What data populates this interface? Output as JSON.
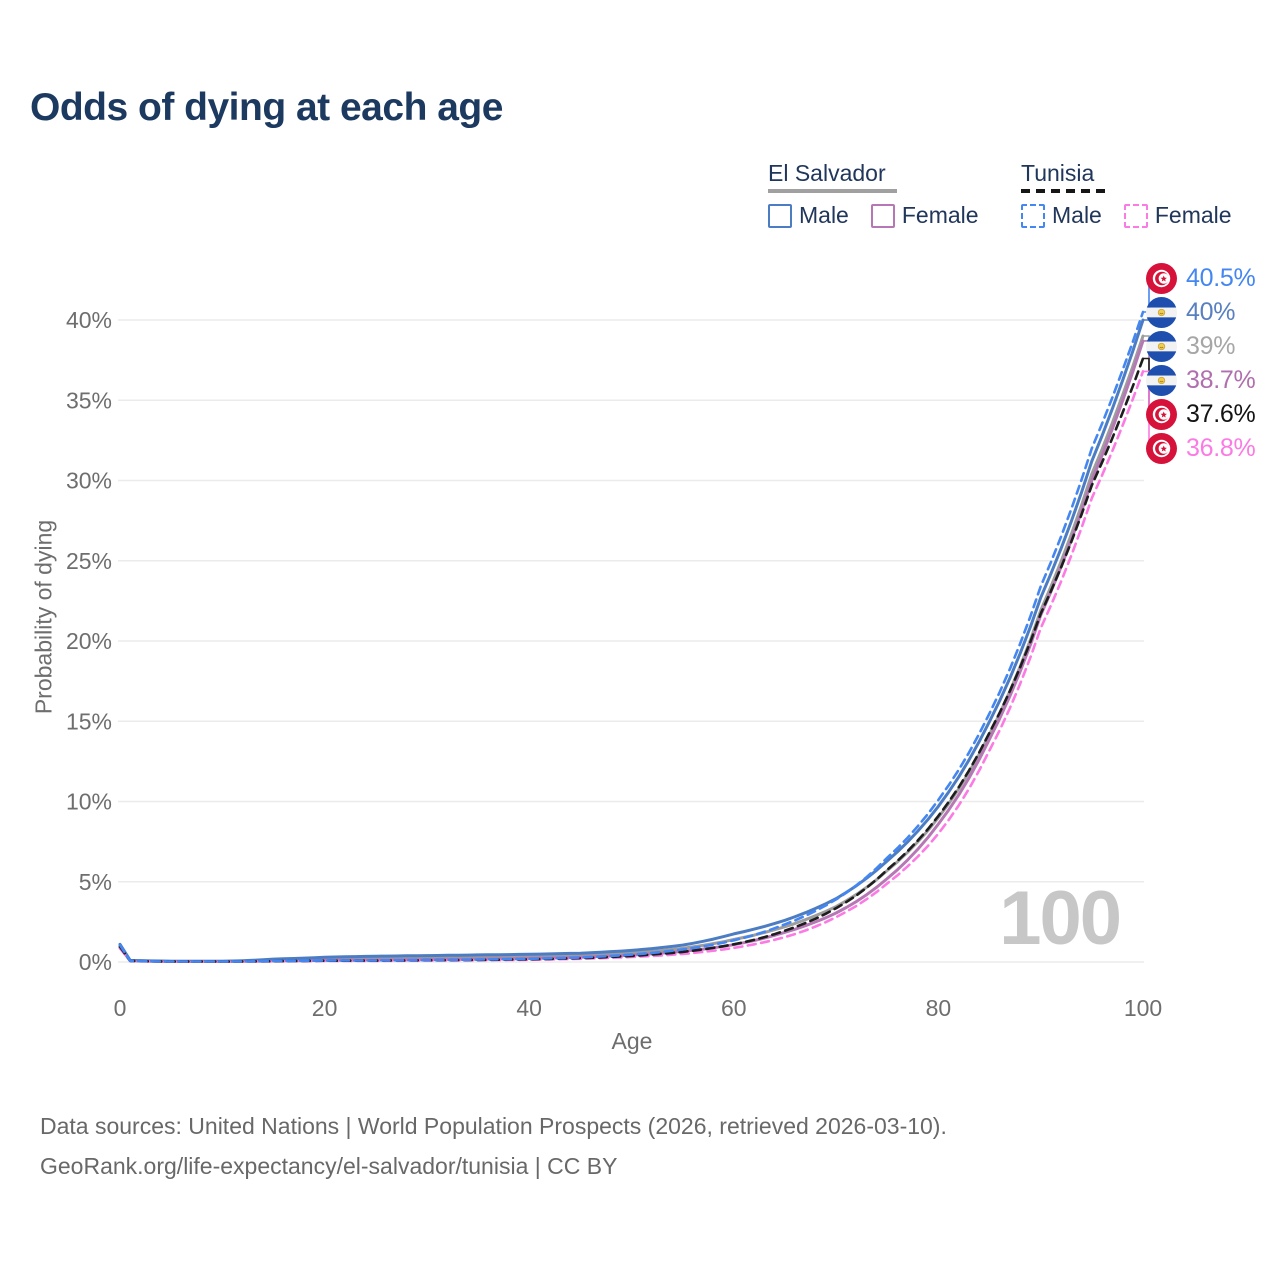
{
  "title": "Odds of dying at each age",
  "legend": {
    "groups": [
      {
        "country": "El Salvador",
        "line_style": "solid",
        "underline_color": "#a0a0a0",
        "items": [
          {
            "label": "Male",
            "color": "#4c7dc2",
            "dashed": false
          },
          {
            "label": "Female",
            "color": "#b678b4",
            "dashed": false
          }
        ]
      },
      {
        "country": "Tunisia",
        "line_style": "dashed",
        "underline_color": "#161616",
        "items": [
          {
            "label": "Male",
            "color": "#4486f2",
            "dashed": true
          },
          {
            "label": "Female",
            "color": "#fb7ae3",
            "dashed": true
          }
        ]
      }
    ]
  },
  "chart_data": {
    "type": "line",
    "title": "Odds of dying at each age",
    "xlabel": "Age",
    "ylabel": "Probability of dying",
    "xlim": [
      0,
      100
    ],
    "ylim_percent": [
      0,
      42
    ],
    "x_ticks": [
      0,
      20,
      40,
      60,
      80,
      100
    ],
    "y_ticks_percent": [
      0,
      5,
      10,
      15,
      20,
      25,
      30,
      35,
      40
    ],
    "y_tick_suffix": "%",
    "grid": true,
    "watermark": "100",
    "ages": [
      0,
      1,
      5,
      10,
      15,
      20,
      25,
      30,
      35,
      40,
      45,
      50,
      55,
      60,
      65,
      70,
      75,
      80,
      85,
      90,
      95,
      100
    ],
    "series": [
      {
        "id": "sv-all",
        "country": "El Salvador",
        "group": "all",
        "color": "#9d9d9d",
        "dash": false,
        "end_value_label": "39%",
        "values_percent": [
          1.0,
          0.09,
          0.04,
          0.04,
          0.12,
          0.2,
          0.24,
          0.27,
          0.3,
          0.34,
          0.42,
          0.56,
          0.85,
          1.4,
          2.2,
          3.45,
          5.7,
          9.0,
          14.2,
          21.9,
          30.4,
          39.0
        ]
      },
      {
        "id": "sv-female",
        "country": "El Salvador",
        "group": "female",
        "legend": "Female",
        "color": "#b678b4",
        "dash": false,
        "end_value_label": "38.7%",
        "values_percent": [
          0.9,
          0.08,
          0.03,
          0.03,
          0.07,
          0.1,
          0.12,
          0.15,
          0.18,
          0.22,
          0.3,
          0.43,
          0.66,
          1.08,
          1.85,
          3.05,
          5.2,
          8.6,
          13.9,
          21.6,
          30.0,
          38.7
        ]
      },
      {
        "id": "sv-male",
        "country": "El Salvador",
        "group": "male",
        "legend": "Male",
        "color": "#4c7dc2",
        "dash": false,
        "end_value_label": "40%",
        "values_percent": [
          1.1,
          0.1,
          0.05,
          0.05,
          0.18,
          0.3,
          0.36,
          0.4,
          0.44,
          0.48,
          0.55,
          0.72,
          1.05,
          1.75,
          2.6,
          3.95,
          6.3,
          9.7,
          15.0,
          22.7,
          31.2,
          40.0
        ]
      },
      {
        "id": "tn-female",
        "country": "Tunisia",
        "group": "female",
        "legend": "Female",
        "color": "#fb7ae3",
        "dash": true,
        "end_value_label": "36.8%",
        "values_percent": [
          0.85,
          0.06,
          0.02,
          0.02,
          0.04,
          0.06,
          0.07,
          0.09,
          0.11,
          0.14,
          0.2,
          0.31,
          0.5,
          0.88,
          1.55,
          2.8,
          4.9,
          8.0,
          13.2,
          20.8,
          28.9,
          36.8
        ]
      },
      {
        "id": "tn-all",
        "country": "Tunisia",
        "group": "all",
        "color": "#1d1d1d",
        "dash": true,
        "end_value_label": "37.6%",
        "values_percent": [
          0.95,
          0.07,
          0.03,
          0.03,
          0.05,
          0.08,
          0.09,
          0.11,
          0.13,
          0.17,
          0.24,
          0.38,
          0.63,
          1.1,
          1.95,
          3.35,
          5.75,
          9.1,
          14.3,
          21.7,
          29.7,
          37.6
        ]
      },
      {
        "id": "tn-male",
        "country": "Tunisia",
        "group": "male",
        "legend": "Male",
        "color": "#4486f2",
        "dash": true,
        "end_value_label": "40.5%",
        "values_percent": [
          1.05,
          0.07,
          0.03,
          0.03,
          0.06,
          0.09,
          0.1,
          0.12,
          0.15,
          0.2,
          0.28,
          0.46,
          0.78,
          1.35,
          2.35,
          3.9,
          6.5,
          10.1,
          15.5,
          23.4,
          32.0,
          40.5
        ]
      }
    ],
    "end_labels": [
      {
        "text": "40.5%",
        "color": "#4486f2",
        "flag": "tunisia",
        "series": "tn-male"
      },
      {
        "text": "40%",
        "color": "#587fc0",
        "flag": "el-salvador",
        "series": "sv-male"
      },
      {
        "text": "39%",
        "color": "#a6a6a6",
        "flag": "el-salvador",
        "series": "sv-all"
      },
      {
        "text": "38.7%",
        "color": "#b06fae",
        "flag": "el-salvador",
        "series": "sv-female"
      },
      {
        "text": "37.6%",
        "color": "#141414",
        "flag": "tunisia",
        "series": "tn-all"
      },
      {
        "text": "36.8%",
        "color": "#fb7ae3",
        "flag": "tunisia",
        "series": "tn-female"
      }
    ]
  },
  "footer": {
    "line1": "Data sources: United Nations | World Population Prospects (2026, retrieved 2026-03-10).",
    "line2": "GeoRank.org/life-expectancy/el-salvador/tunisia | CC BY"
  }
}
